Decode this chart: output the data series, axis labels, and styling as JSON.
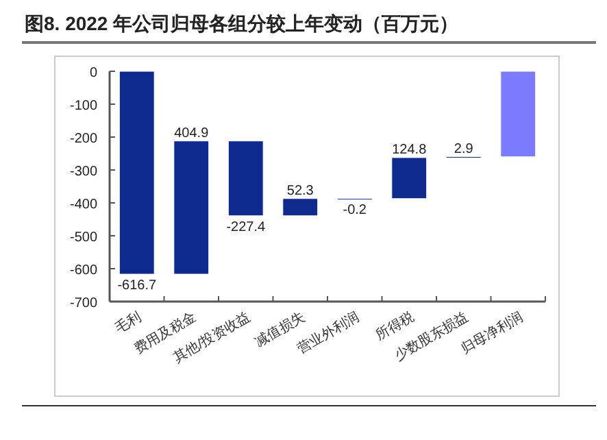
{
  "chart_data": {
    "type": "bar",
    "title": "图8. 2022 年公司归母各组分较上年变动（百万元）",
    "categories": [
      "毛利",
      "费用及税金",
      "其他/投资收益",
      "减值损失",
      "营业外利润",
      "所得税",
      "少数股东损益",
      "归母净利润"
    ],
    "values": [
      -616.7,
      404.9,
      -227.4,
      52.3,
      -0.2,
      124.8,
      2.9,
      -260
    ],
    "base": [
      0,
      -616.7,
      -211.8,
      -439.2,
      -386.9,
      -387.1,
      -262.3,
      0
    ],
    "colors": [
      "#0f2a8f",
      "#0f2a8f",
      "#0f2a8f",
      "#0f2a8f",
      "#0f2a8f",
      "#0f2a8f",
      "#0f2a8f",
      "#7b7bff"
    ],
    "value_labels": [
      "-616.7",
      "404.9",
      "-227.4",
      "52.3",
      "-0.2",
      "124.8",
      "2.9",
      null
    ],
    "ylim": [
      -700,
      0
    ],
    "yticks": [
      0,
      -100,
      -200,
      -300,
      -400,
      -500,
      -600,
      -700
    ]
  }
}
